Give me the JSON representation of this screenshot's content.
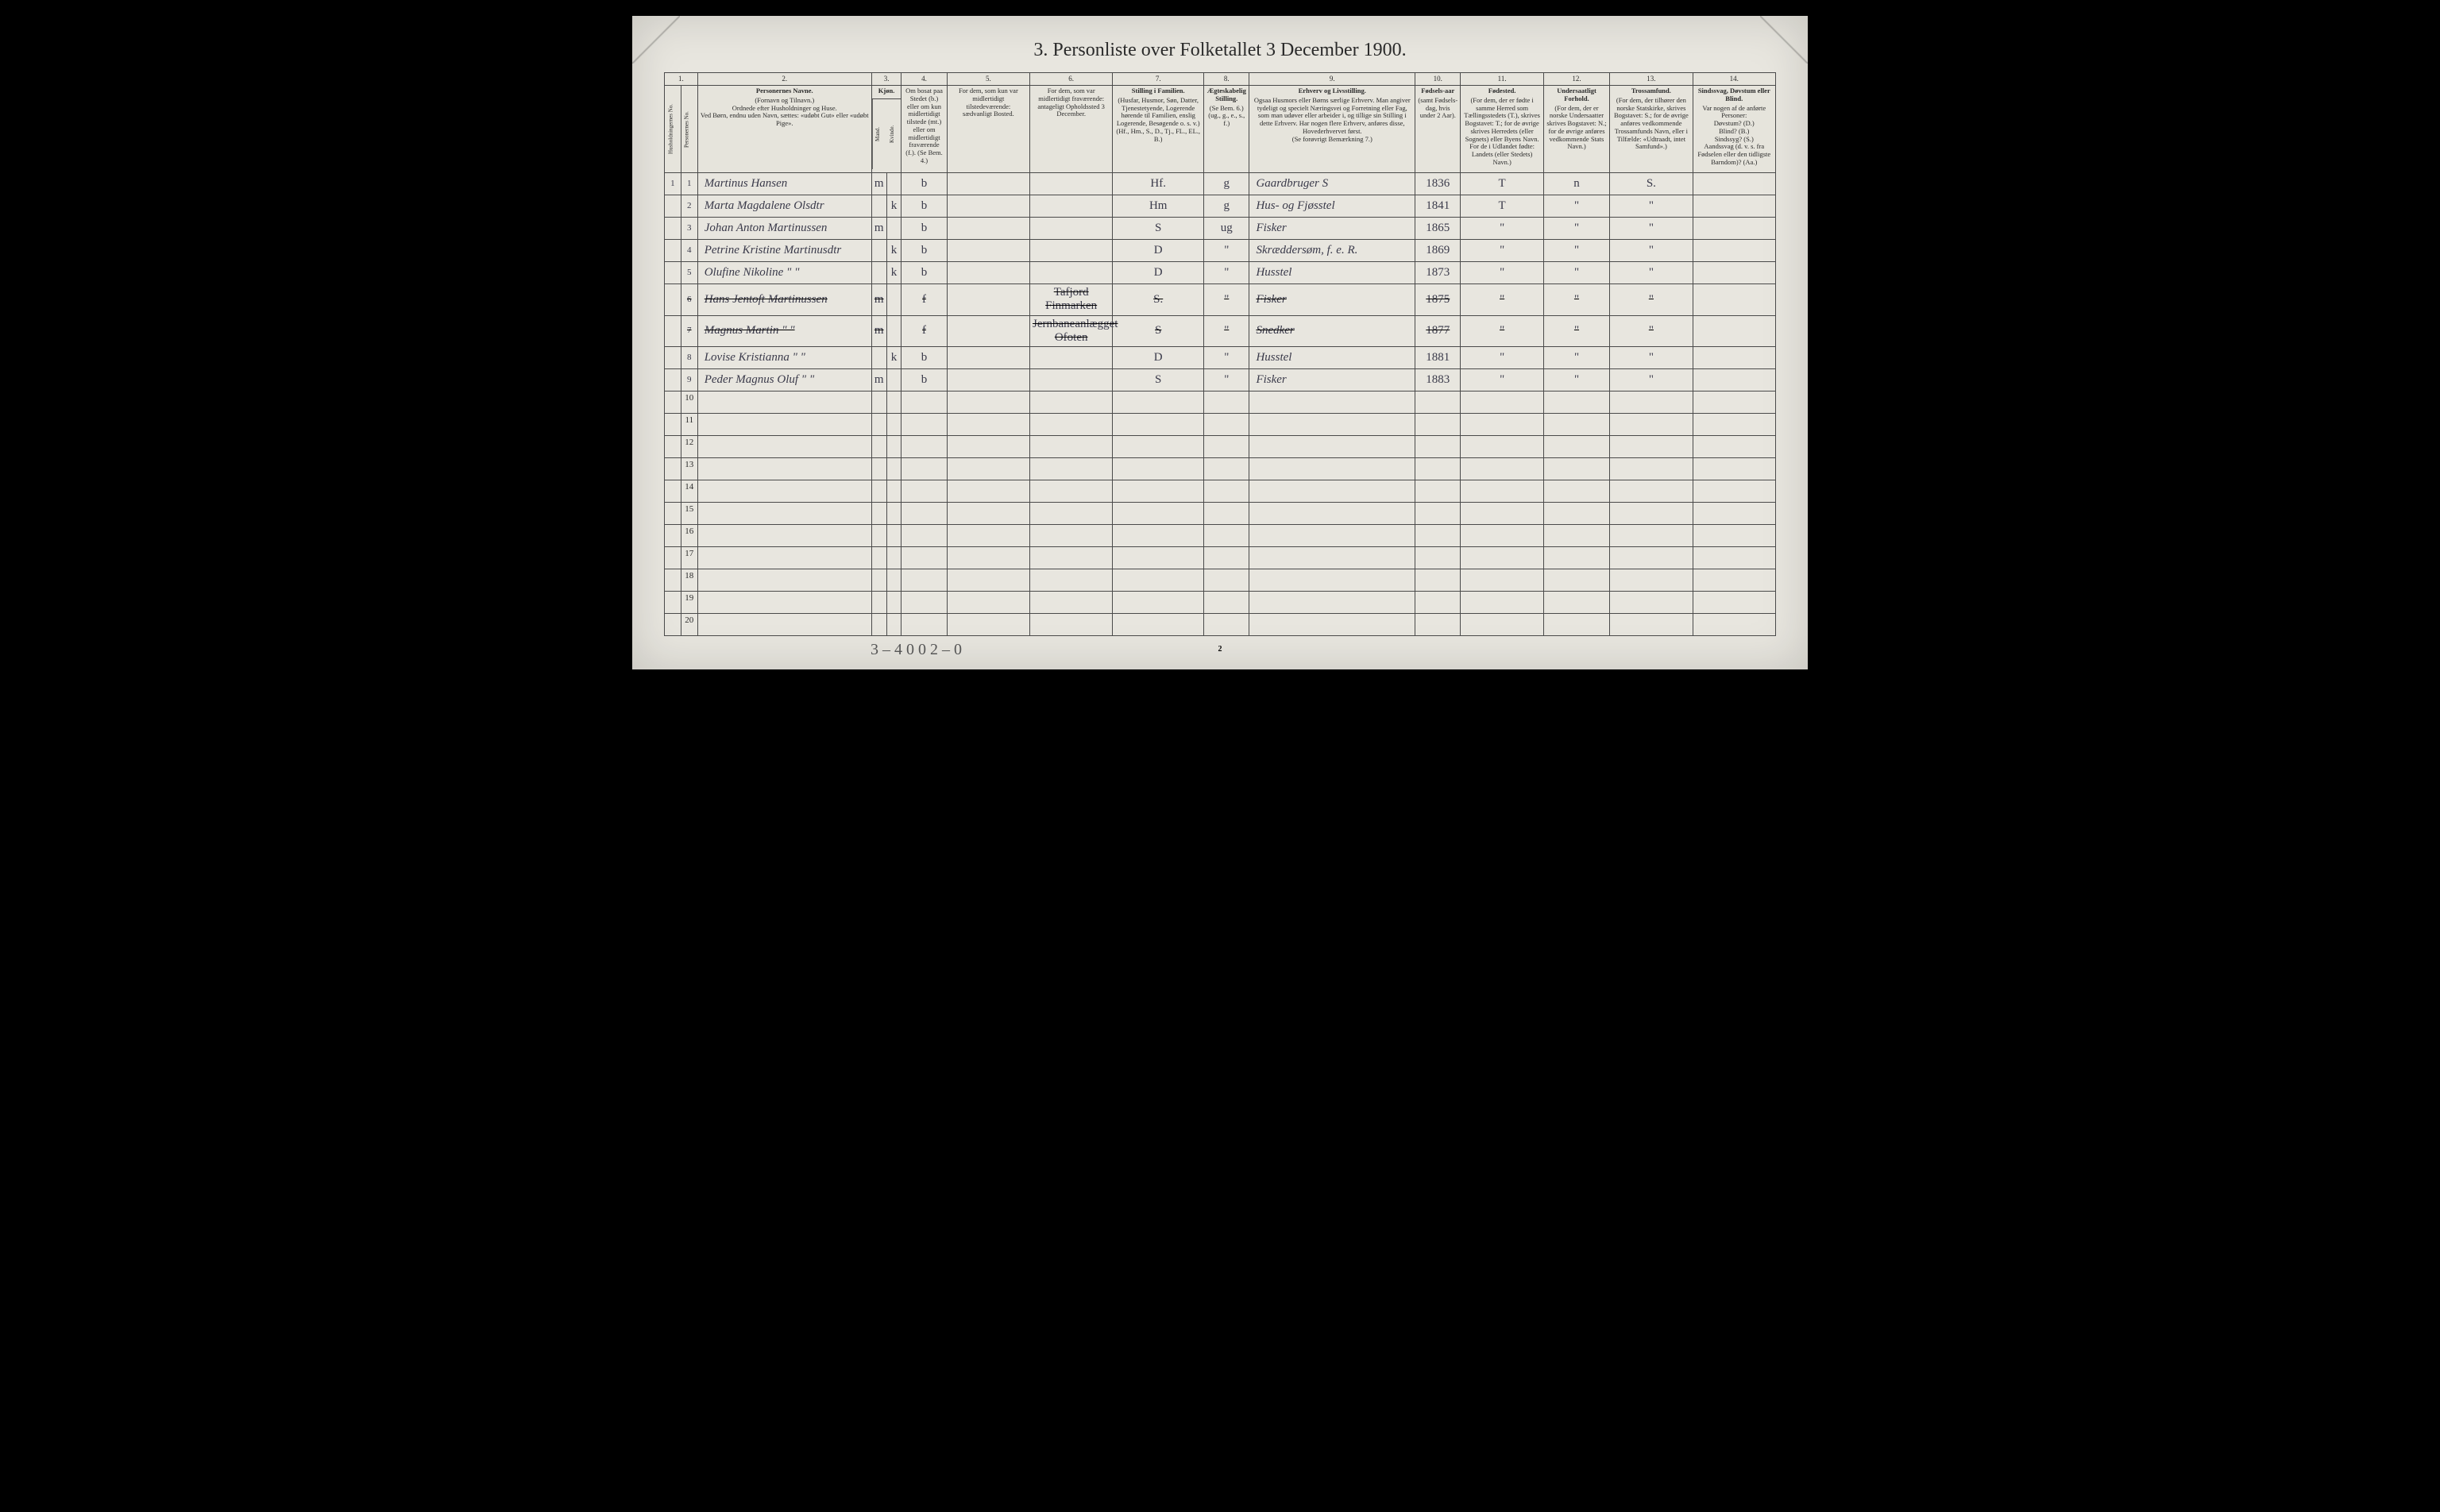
{
  "title": "3. Personliste over Folketallet 3 December 1900.",
  "colnums": [
    "1.",
    "2.",
    "3.",
    "4.",
    "5.",
    "6.",
    "7.",
    "8.",
    "9.",
    "10.",
    "11.",
    "12.",
    "13.",
    "14."
  ],
  "headers": {
    "c1a": "Husholdningernes No.",
    "c1b": "Personernes No.",
    "c2_strong": "Personernes Navne.",
    "c2_body": "(Fornavn og Tilnavn.)\nOrdnede efter Husholdninger og Huse.\nVed Børn, endnu uden Navn, sættes: «udøbt Gut» eller «udøbt Pige».",
    "c3_strong": "Kjøn.",
    "c3a": "Mand.",
    "c3b": "Kvinde.",
    "c4": "Om bosat paa Stedet (b.) eller om kun midlertidigt tilstede (mt.) eller om midlertidigt fraværende (f.). (Se Bem. 4.)",
    "c5": "For dem, som kun var midlertidigt tilstedeværende:\nsædvanligt Bosted.",
    "c6": "For dem, som var midlertidigt fraværende:\nantageligt Opholdssted 3 December.",
    "c7_strong": "Stilling i Familien.",
    "c7_body": "(Husfar, Husmor, Søn, Datter, Tjenestetyende, Logerende hørende til Familien, enslig Logerende, Besøgende o. s. v.)\n(Hf., Hm., S., D., Tj., FL., EL., B.)",
    "c8_strong": "Ægteskabelig Stilling.",
    "c8_body": "(Se Bem. 6.)\n(ug., g., e., s., f.)",
    "c9_strong": "Erhverv og Livsstilling.",
    "c9_body": "Ogsaa Husmors eller Børns særlige Erhverv. Man angiver tydeligt og specielt Næringsvei og Forretning eller Fag, som man udøver eller arbeider i, og tillige sin Stilling i dette Erhverv. Har nogen flere Erhverv, anføres disse, Hovederhvervet først.\n(Se forøvrigt Bemærkning 7.)",
    "c10_strong": "Fødsels-aar",
    "c10_body": "(samt Fødsels-dag, hvis under 2 Aar).",
    "c11_strong": "Fødested.",
    "c11_body": "(For dem, der er fødte i samme Herred som Tællingsstedets (T.), skrives Bogstavet: T.; for de øvrige skrives Herredets (eller Sognets) eller Byens Navn. For de i Udlandet fødte: Landets (eller Stedets) Navn.)",
    "c12_strong": "Undersaatligt Forhold.",
    "c12_body": "(For dem, der er norske Undersaatter skrives Bogstavet: N.; for de øvrige anføres vedkommende Stats Navn.)",
    "c13_strong": "Trossamfund.",
    "c13_body": "(For dem, der tilhører den norske Statskirke, skrives Bogstavet: S.; for de øvrige anføres vedkommende Trossamfunds Navn, eller i Tilfælde: «Udtraadt, intet Samfund».)",
    "c14_strong": "Sindssvag, Døvstum eller Blind.",
    "c14_body": "Var nogen af de anførte Personer:\nDøvstum? (D.)\nBlind? (B.)\nSindssyg? (S.)\nAandssvag (d. v. s. fra Fødselen eller den tidligste Barndom)? (Aa.)"
  },
  "rows": [
    {
      "hh": "1",
      "no": "1",
      "name": "Martinus Hansen",
      "m": "m",
      "k": "",
      "bos": "b",
      "sted": "",
      "frav": "",
      "fam": "Hf.",
      "aegt": "g",
      "erhv": "Gaardbruger S",
      "aar": "1836",
      "fode": "T",
      "und": "n",
      "tros": "S.",
      "sind": ""
    },
    {
      "hh": "",
      "no": "2",
      "name": "Marta Magdalene Olsdtr",
      "m": "",
      "k": "k",
      "bos": "b",
      "sted": "",
      "frav": "",
      "fam": "Hm",
      "aegt": "g",
      "erhv": "Hus- og Fjøsstel",
      "aar": "1841",
      "fode": "T",
      "und": "\"",
      "tros": "\"",
      "sind": ""
    },
    {
      "hh": "",
      "no": "3",
      "name": "Johan Anton Martinussen",
      "m": "m",
      "k": "",
      "bos": "b",
      "sted": "",
      "frav": "",
      "fam": "S",
      "aegt": "ug",
      "erhv": "Fisker",
      "aar": "1865",
      "fode": "\"",
      "und": "\"",
      "tros": "\"",
      "sind": ""
    },
    {
      "hh": "",
      "no": "4",
      "name": "Petrine Kristine Martinusdtr",
      "m": "",
      "k": "k",
      "bos": "b",
      "sted": "",
      "frav": "",
      "fam": "D",
      "aegt": "\"",
      "erhv": "Skræddersøm, f. e. R.",
      "aar": "1869",
      "fode": "\"",
      "und": "\"",
      "tros": "\"",
      "sind": ""
    },
    {
      "hh": "",
      "no": "5",
      "name": "Olufine Nikoline  \" \"",
      "m": "",
      "k": "k",
      "bos": "b",
      "sted": "",
      "frav": "",
      "fam": "D",
      "aegt": "\"",
      "erhv": "Husstel",
      "aar": "1873",
      "fode": "\"",
      "und": "\"",
      "tros": "\"",
      "sind": ""
    },
    {
      "hh": "",
      "no": "6",
      "name": "Hans Jentoft Martinussen",
      "m": "m",
      "k": "",
      "bos": "f",
      "sted": "",
      "frav": "Tafjord Finmarken",
      "fam": "S.",
      "aegt": "\"",
      "erhv": "Fisker",
      "aar": "1875",
      "fode": "\"",
      "und": "\"",
      "tros": "\"",
      "sind": "",
      "struck": true
    },
    {
      "hh": "",
      "no": "7",
      "name": "Magnus Martin  \" \"",
      "m": "m",
      "k": "",
      "bos": "f",
      "sted": "",
      "frav": "Jernbaneanlægget Ofoten",
      "fam": "S",
      "aegt": "\"",
      "erhv": "Snedker",
      "aar": "1877",
      "fode": "\"",
      "und": "\"",
      "tros": "\"",
      "sind": "",
      "struck": true
    },
    {
      "hh": "",
      "no": "8",
      "name": "Lovise Kristianna  \" \"",
      "m": "",
      "k": "k",
      "bos": "b",
      "sted": "",
      "frav": "",
      "fam": "D",
      "aegt": "\"",
      "erhv": "Husstel",
      "aar": "1881",
      "fode": "\"",
      "und": "\"",
      "tros": "\"",
      "sind": ""
    },
    {
      "hh": "",
      "no": "9",
      "name": "Peder Magnus Oluf  \" \"",
      "m": "m",
      "k": "",
      "bos": "b",
      "sted": "",
      "frav": "",
      "fam": "S",
      "aegt": "\"",
      "erhv": "Fisker",
      "aar": "1883",
      "fode": "\"",
      "und": "\"",
      "tros": "\"",
      "sind": ""
    }
  ],
  "empty_rows": [
    "10",
    "11",
    "12",
    "13",
    "14",
    "15",
    "16",
    "17",
    "18",
    "19",
    "20"
  ],
  "footer_note": "3 – 4   0  0   2 – 0",
  "page_num": "2",
  "colors": {
    "page_bg": "#e8e6df",
    "border": "#4a4a4a",
    "text": "#2a2a2a",
    "ink": "#3a3a4a"
  }
}
